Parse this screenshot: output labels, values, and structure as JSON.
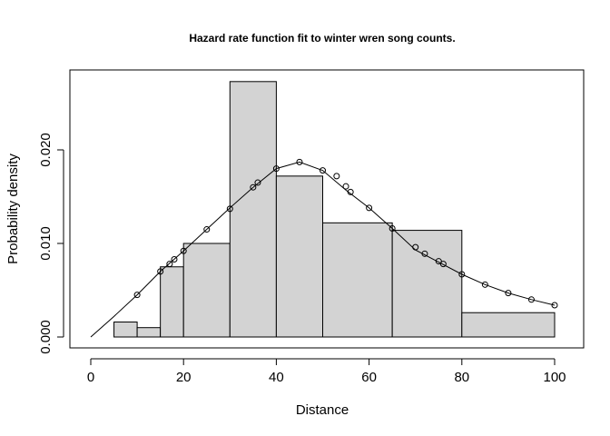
{
  "chart_data": {
    "type": "histogram",
    "title": "Hazard rate function fit to winter wren song counts.",
    "xlabel": "Distance",
    "ylabel": "Probability density",
    "xlim": [
      0,
      100
    ],
    "ylim": [
      0,
      0.027
    ],
    "x_ticks": [
      0,
      20,
      40,
      60,
      80,
      100
    ],
    "y_ticks": [
      0.0,
      0.01,
      0.02
    ],
    "x_tick_labels": [
      "0",
      "20",
      "40",
      "60",
      "80",
      "100"
    ],
    "y_tick_labels": [
      "0.000",
      "0.010",
      "0.020"
    ],
    "bins": [
      {
        "start": 5,
        "end": 10,
        "density": 0.0016
      },
      {
        "start": 10,
        "end": 15,
        "density": 0.001
      },
      {
        "start": 15,
        "end": 20,
        "density": 0.0075
      },
      {
        "start": 20,
        "end": 30,
        "density": 0.01
      },
      {
        "start": 30,
        "end": 40,
        "density": 0.0273
      },
      {
        "start": 40,
        "end": 50,
        "density": 0.0172
      },
      {
        "start": 50,
        "end": 65,
        "density": 0.0122
      },
      {
        "start": 65,
        "end": 80,
        "density": 0.0114
      },
      {
        "start": 80,
        "end": 100,
        "density": 0.0026
      }
    ],
    "fit_line": {
      "x": [
        0,
        5,
        10,
        15,
        20,
        25,
        30,
        35,
        40,
        45,
        50,
        55,
        60,
        65,
        70,
        75,
        80,
        85,
        90,
        95,
        100
      ],
      "y": [
        0.0,
        0.0022,
        0.0045,
        0.007,
        0.0092,
        0.0115,
        0.0138,
        0.016,
        0.018,
        0.0187,
        0.0178,
        0.0157,
        0.0138,
        0.0116,
        0.0093,
        0.008,
        0.0067,
        0.0056,
        0.0047,
        0.004,
        0.0034
      ]
    },
    "observed_points": {
      "x": [
        10,
        15,
        17,
        18,
        20,
        25,
        30,
        35,
        36,
        40,
        45,
        50,
        53,
        55,
        56,
        60,
        65,
        70,
        72,
        75,
        76,
        80,
        85,
        90,
        95,
        100
      ],
      "y": [
        0.0045,
        0.007,
        0.0078,
        0.0083,
        0.0092,
        0.0115,
        0.0137,
        0.016,
        0.0165,
        0.018,
        0.0187,
        0.0178,
        0.0172,
        0.0161,
        0.0155,
        0.0138,
        0.0116,
        0.0096,
        0.0089,
        0.0081,
        0.0078,
        0.0067,
        0.0056,
        0.0047,
        0.004,
        0.0034
      ]
    },
    "colors": {
      "bar_fill": "#d3d3d3",
      "bar_stroke": "#000000",
      "line": "#000000",
      "point_stroke": "#000000"
    },
    "grid": false,
    "legend": "none"
  }
}
